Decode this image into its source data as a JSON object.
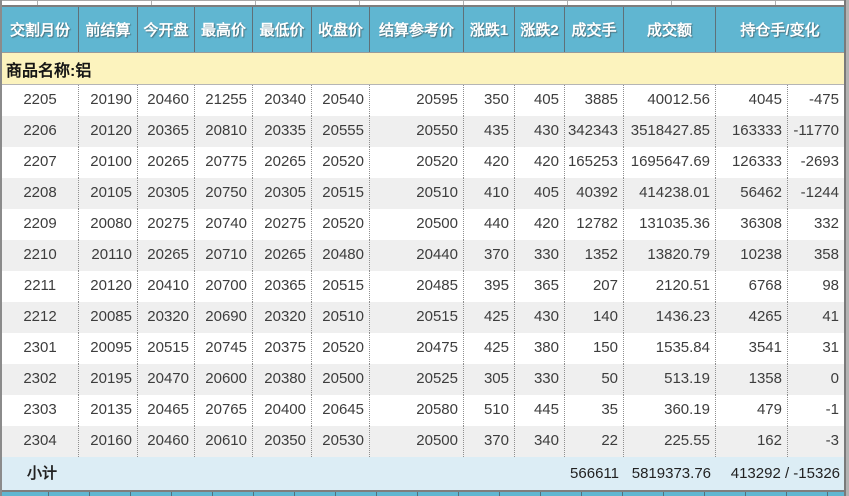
{
  "colors": {
    "header_bg": "#60b6d1",
    "group_bg": "#fcf3be",
    "subtotal_bg": "#dcedf5",
    "row_alt": "#efefef"
  },
  "table": {
    "headers": [
      {
        "id": "delivery-month",
        "label": "交割月份"
      },
      {
        "id": "prev-settle",
        "label": "前结算"
      },
      {
        "id": "open",
        "label": "今开盘"
      },
      {
        "id": "high",
        "label": "最高价"
      },
      {
        "id": "low",
        "label": "最低价"
      },
      {
        "id": "close",
        "label": "收盘价"
      },
      {
        "id": "settle-ref",
        "label": "结算参考价"
      },
      {
        "id": "change1",
        "label": "涨跌1"
      },
      {
        "id": "change2",
        "label": "涨跌2"
      },
      {
        "id": "volume",
        "label": "成交手"
      },
      {
        "id": "turnover",
        "label": "成交额"
      },
      {
        "id": "oi-and-change",
        "label": "持仓手/变化"
      }
    ],
    "column_ids": [
      "delivery-month",
      "prev-settle",
      "open",
      "high",
      "low",
      "close",
      "settle-ref",
      "change1",
      "change2",
      "volume",
      "turnover",
      "open-interest",
      "oi-change"
    ],
    "group_row": {
      "label": "商品名称:铝"
    },
    "rows": [
      [
        "2205",
        "20190",
        "20460",
        "21255",
        "20340",
        "20540",
        "20595",
        "350",
        "405",
        "3885",
        "40012.56",
        "4045",
        "-475"
      ],
      [
        "2206",
        "20120",
        "20365",
        "20810",
        "20335",
        "20555",
        "20550",
        "435",
        "430",
        "342343",
        "3518427.85",
        "163333",
        "-11770"
      ],
      [
        "2207",
        "20100",
        "20265",
        "20775",
        "20265",
        "20520",
        "20520",
        "420",
        "420",
        "165253",
        "1695647.69",
        "126333",
        "-2693"
      ],
      [
        "2208",
        "20105",
        "20305",
        "20750",
        "20305",
        "20515",
        "20510",
        "410",
        "405",
        "40392",
        "414238.01",
        "56462",
        "-1244"
      ],
      [
        "2209",
        "20080",
        "20275",
        "20740",
        "20275",
        "20520",
        "20500",
        "440",
        "420",
        "12782",
        "131035.36",
        "36308",
        "332"
      ],
      [
        "2210",
        "20110",
        "20265",
        "20710",
        "20265",
        "20480",
        "20440",
        "370",
        "330",
        "1352",
        "13820.79",
        "10238",
        "358"
      ],
      [
        "2211",
        "20120",
        "20410",
        "20700",
        "20365",
        "20515",
        "20485",
        "395",
        "365",
        "207",
        "2120.51",
        "6768",
        "98"
      ],
      [
        "2212",
        "20085",
        "20320",
        "20690",
        "20320",
        "20510",
        "20515",
        "425",
        "430",
        "140",
        "1436.23",
        "4265",
        "41"
      ],
      [
        "2301",
        "20095",
        "20515",
        "20745",
        "20375",
        "20520",
        "20475",
        "425",
        "380",
        "150",
        "1535.84",
        "3541",
        "31"
      ],
      [
        "2302",
        "20195",
        "20470",
        "20600",
        "20380",
        "20500",
        "20525",
        "305",
        "330",
        "50",
        "513.19",
        "1358",
        "0"
      ],
      [
        "2303",
        "20135",
        "20465",
        "20765",
        "20400",
        "20645",
        "20580",
        "510",
        "445",
        "35",
        "360.19",
        "479",
        "-1"
      ],
      [
        "2304",
        "20160",
        "20460",
        "20610",
        "20350",
        "20530",
        "20500",
        "370",
        "340",
        "22",
        "225.55",
        "162",
        "-3"
      ]
    ],
    "subtotal": {
      "label": "小计",
      "volume": "566611",
      "turnover": "5819373.76",
      "oi_change": "413292 / -15326"
    }
  }
}
